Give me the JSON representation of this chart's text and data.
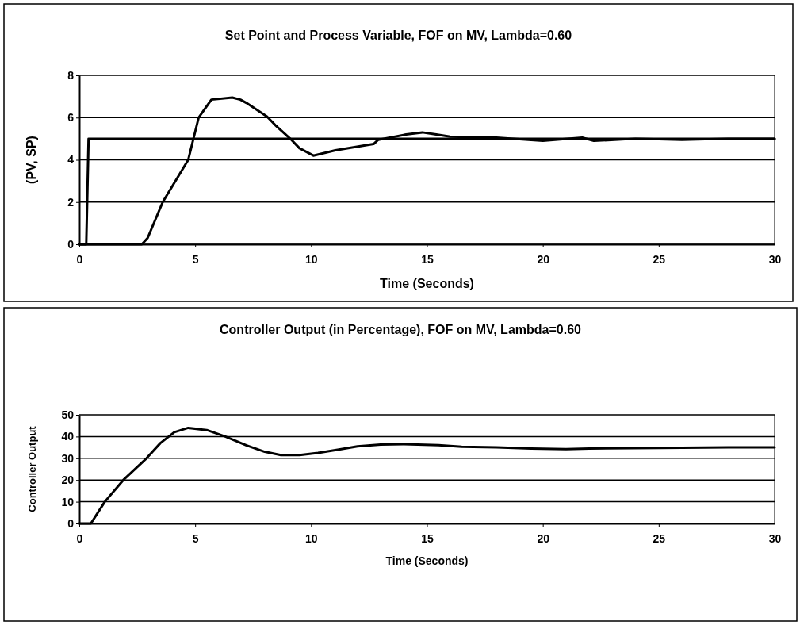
{
  "chart_data": [
    {
      "type": "line",
      "title": "Set Point and Process Variable, FOF on MV, Lambda=0.60",
      "xlabel": "Time (Seconds)",
      "ylabel": "(PV, SP)",
      "xlim": [
        0,
        30
      ],
      "ylim": [
        0,
        8
      ],
      "xticks": [
        0,
        5,
        10,
        15,
        20,
        25,
        30
      ],
      "yticks": [
        0,
        2,
        4,
        6,
        8
      ],
      "grid": "y",
      "marker": "none",
      "line_style": "solid",
      "series": [
        {
          "color": "#000000",
          "x": [
            0,
            0.3,
            0.4,
            30
          ],
          "values": [
            0,
            0,
            5,
            5
          ]
        },
        {
          "color": "#000000",
          "x": [
            0,
            2.7,
            2.95,
            3.6,
            4.7,
            5.15,
            5.7,
            6.6,
            6.95,
            7.2,
            8.1,
            8.45,
            9.15,
            9.5,
            10.1,
            11.05,
            12.7,
            12.9,
            14.1,
            14.8,
            15.4,
            16,
            18,
            20,
            21.7,
            22.2,
            24,
            26,
            28,
            30
          ],
          "values": [
            0,
            0,
            0.3,
            2,
            4,
            6,
            6.85,
            6.95,
            6.85,
            6.7,
            6.05,
            5.65,
            4.95,
            4.55,
            4.2,
            4.45,
            4.75,
            4.95,
            5.2,
            5.3,
            5.2,
            5.1,
            5.05,
            4.9,
            5.05,
            4.9,
            5,
            4.95,
            5,
            5
          ]
        }
      ]
    },
    {
      "type": "line",
      "title": "Controller Output (in Percentage), FOF on MV, Lambda=0.60",
      "xlabel": "Time (Seconds)",
      "ylabel": "Controller Output",
      "xlim": [
        0,
        30
      ],
      "ylim": [
        0,
        50
      ],
      "xticks": [
        0,
        5,
        10,
        15,
        20,
        25,
        30
      ],
      "yticks": [
        0,
        10,
        20,
        30,
        40,
        50
      ],
      "grid": "y",
      "marker": "none",
      "line_style": "solid",
      "series": [
        {
          "color": "#000000",
          "x": [
            0,
            0.5,
            1.1,
            1.9,
            2.9,
            3.5,
            4.1,
            4.7,
            5.5,
            6.3,
            7.2,
            8,
            8.7,
            9.5,
            10.3,
            11.2,
            12,
            13,
            14,
            15.5,
            16.5,
            18,
            19.5,
            21,
            22,
            25,
            28,
            30
          ],
          "values": [
            0,
            0,
            10,
            20,
            30,
            37,
            42,
            44,
            43,
            40,
            36,
            33,
            31.5,
            31.5,
            32.5,
            34,
            35.5,
            36.3,
            36.5,
            36,
            35.3,
            35,
            34.5,
            34.2,
            34.5,
            34.8,
            35,
            35
          ]
        }
      ]
    }
  ]
}
